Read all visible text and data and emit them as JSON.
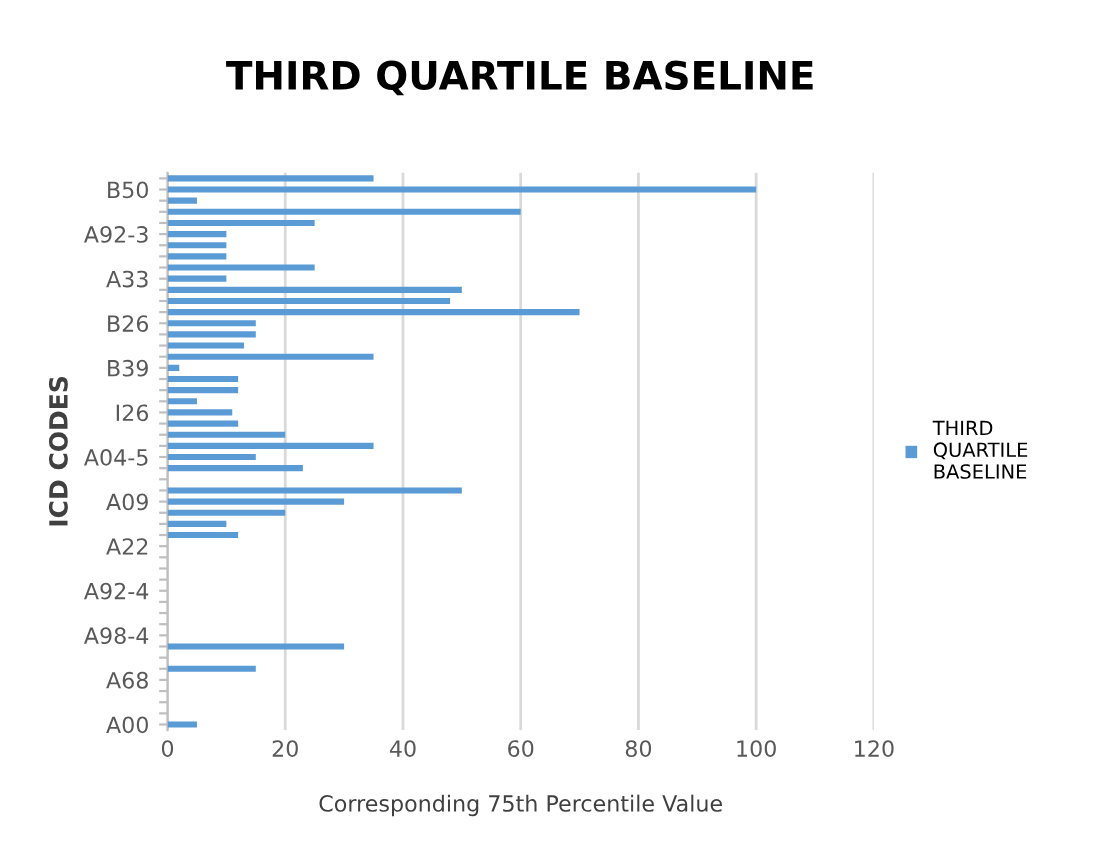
{
  "chart_data": {
    "type": "bar",
    "orientation": "horizontal",
    "title": "THIRD QUARTILE BASELINE",
    "xlabel": "Corresponding 75th Percentile Value",
    "ylabel": "ICD CODES",
    "categories": [
      null,
      "B50",
      null,
      null,
      null,
      "A92-3",
      null,
      null,
      null,
      "A33",
      null,
      null,
      null,
      "B26",
      null,
      null,
      null,
      "B39",
      null,
      null,
      null,
      "I26",
      null,
      null,
      null,
      "A04-5",
      null,
      null,
      null,
      "A09",
      null,
      null,
      null,
      "A22",
      null,
      null,
      null,
      "A92-4",
      null,
      null,
      null,
      "A98-4",
      null,
      null,
      null,
      "A68",
      null,
      null,
      null,
      "A00"
    ],
    "series": [
      {
        "name": "THIRD QUARTILE BASELINE",
        "color": "#5b9bd5",
        "values": [
          35,
          100,
          5,
          60,
          25,
          10,
          10,
          10,
          25,
          10,
          50,
          48,
          70,
          15,
          15,
          13,
          35,
          2,
          12,
          12,
          5,
          11,
          12,
          20,
          35,
          15,
          23,
          null,
          50,
          30,
          20,
          10,
          12,
          null,
          null,
          null,
          null,
          null,
          null,
          null,
          null,
          null,
          30,
          null,
          15,
          null,
          null,
          null,
          null,
          5
        ]
      }
    ],
    "xlim": [
      0,
      120
    ],
    "xticks": [
      0,
      20,
      40,
      60,
      80,
      100,
      120
    ],
    "grid": "x",
    "legend": "right"
  }
}
